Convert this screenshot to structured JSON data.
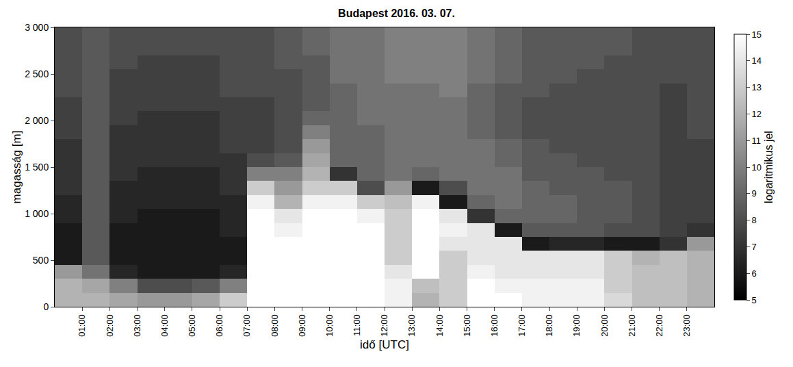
{
  "chart_data": {
    "type": "heatmap",
    "title": "Budapest 2016. 03. 07.",
    "x_label": "idő [UTC]",
    "y_label": "magasság [m]",
    "color": "gray",
    "xlim": [
      0,
      24
    ],
    "ylim": [
      0,
      3000
    ],
    "xticks": [
      {
        "value": 1,
        "label": "01:00"
      },
      {
        "value": 2,
        "label": "02:00"
      },
      {
        "value": 3,
        "label": "03:00"
      },
      {
        "value": 4,
        "label": "04:00"
      },
      {
        "value": 5,
        "label": "05:00"
      },
      {
        "value": 6,
        "label": "06:00"
      },
      {
        "value": 7,
        "label": "07:00"
      },
      {
        "value": 8,
        "label": "08:00"
      },
      {
        "value": 9,
        "label": "09:00"
      },
      {
        "value": 10,
        "label": "10:00"
      },
      {
        "value": 11,
        "label": "11:00"
      },
      {
        "value": 12,
        "label": "12:00"
      },
      {
        "value": 13,
        "label": "13:00"
      },
      {
        "value": 14,
        "label": "14:00"
      },
      {
        "value": 15,
        "label": "15:00"
      },
      {
        "value": 16,
        "label": "16:00"
      },
      {
        "value": 17,
        "label": "17:00"
      },
      {
        "value": 18,
        "label": "18:00"
      },
      {
        "value": 19,
        "label": "19:00"
      },
      {
        "value": 20,
        "label": "20:00"
      },
      {
        "value": 21,
        "label": "21:00"
      },
      {
        "value": 22,
        "label": "22:00"
      },
      {
        "value": 23,
        "label": "23:00"
      }
    ],
    "yticks": [
      0,
      500,
      {
        "value": 1000,
        "label": "1 000"
      },
      {
        "value": 1500,
        "label": "1 500"
      },
      {
        "value": 2000,
        "label": "2 000"
      },
      {
        "value": 2500,
        "label": "2 500"
      },
      {
        "value": 3000,
        "label": "3 000"
      }
    ],
    "colorbar_label": "logaritmikus jel",
    "colorbar_range": [
      5,
      15
    ],
    "colorbar_ticks": [
      5,
      6,
      7,
      8,
      9,
      10,
      11,
      12,
      13,
      14,
      15
    ],
    "x": [
      0.5,
      1.5,
      2.5,
      3.5,
      4.5,
      5.5,
      6.5,
      7.5,
      8.5,
      9.5,
      10.5,
      11.5,
      12.5,
      13.5,
      14.5,
      15.5,
      16.5,
      17.5,
      18.5,
      19.5,
      20.5,
      21.5,
      22.5,
      23.5
    ],
    "y": [
      75,
      225,
      375,
      525,
      675,
      825,
      975,
      1125,
      1275,
      1425,
      1575,
      1725,
      1875,
      2025,
      2175,
      2325,
      2475,
      2625,
      2775,
      2925
    ],
    "cells": [
      [
        12,
        12,
        11.5,
        11,
        11,
        11.5,
        13,
        15,
        15,
        15,
        15,
        15,
        14.5,
        12,
        13,
        15,
        15,
        14.5,
        14.5,
        14.5,
        13.5,
        12.5,
        12.5,
        12
      ],
      [
        12,
        11.5,
        10,
        8,
        8,
        8.5,
        10,
        15,
        15,
        15,
        15,
        15,
        14.5,
        12.5,
        13,
        15,
        14.5,
        14.5,
        14.5,
        14.5,
        13,
        12.5,
        12.5,
        12
      ],
      [
        11,
        9.5,
        6.5,
        6,
        6,
        6,
        6.5,
        15,
        15,
        15,
        15,
        15,
        14,
        15,
        13,
        14.5,
        14,
        14,
        14,
        14,
        13,
        12.5,
        12.5,
        12
      ],
      [
        6,
        8.5,
        6,
        6,
        6,
        6,
        6,
        15,
        15,
        15,
        15,
        15,
        13,
        15,
        13,
        14,
        14,
        14,
        14,
        14,
        13,
        12,
        12.5,
        12
      ],
      [
        6,
        8.5,
        6,
        6,
        6,
        6,
        6,
        15,
        15,
        15,
        15,
        15,
        13,
        15,
        14,
        14,
        14,
        6,
        6.5,
        6.5,
        6,
        6,
        7,
        11
      ],
      [
        6,
        8.5,
        6,
        6,
        6,
        6,
        6.5,
        15,
        14.5,
        15,
        15,
        15,
        13,
        15,
        14.5,
        14,
        6,
        8.5,
        8.5,
        8.5,
        8,
        8,
        7.5,
        7
      ],
      [
        6.5,
        8.5,
        6.5,
        6,
        6,
        6,
        6.5,
        15,
        14,
        15,
        15,
        14.5,
        13,
        15,
        14,
        7,
        9,
        9,
        9,
        8.5,
        8.5,
        8,
        7.5,
        7.5
      ],
      [
        6.5,
        8.5,
        6.5,
        6.5,
        6.5,
        6.5,
        6.5,
        14.5,
        12,
        14.5,
        14.5,
        13,
        12.5,
        14.5,
        6,
        9,
        9.5,
        9,
        9,
        8.5,
        8.5,
        8,
        7.5,
        7.5
      ],
      [
        7,
        8.5,
        6.5,
        6.5,
        6.5,
        6.5,
        7,
        13,
        11,
        13,
        13,
        8,
        11,
        6,
        8,
        9.5,
        9.5,
        9,
        8.5,
        8.5,
        8.5,
        8,
        7.5,
        7.5
      ],
      [
        7,
        8.5,
        7,
        6.5,
        6.5,
        6.5,
        7,
        10,
        10,
        12,
        7,
        9,
        9.5,
        9,
        9.5,
        9.5,
        9.5,
        8.5,
        8.5,
        8.5,
        8,
        8,
        7.5,
        7.5
      ],
      [
        7,
        8.5,
        7,
        7,
        7,
        7,
        7,
        8,
        8.5,
        11.5,
        9,
        9,
        9.5,
        9.5,
        9.5,
        9.5,
        9,
        8.5,
        8.5,
        8,
        8,
        8,
        7.5,
        7.5
      ],
      [
        7,
        8.5,
        7,
        7,
        7,
        7,
        7.5,
        7.5,
        8,
        11,
        9,
        9,
        9.5,
        9.5,
        9.5,
        9.5,
        9,
        8.5,
        8,
        8,
        8,
        8,
        7.5,
        7.5
      ],
      [
        7.5,
        8.5,
        7,
        7,
        7,
        7,
        7.5,
        7.5,
        8,
        10,
        9,
        9,
        9.5,
        9.5,
        9.5,
        9,
        8.5,
        8,
        8,
        8,
        8,
        8,
        7.5,
        8
      ],
      [
        7.5,
        8.5,
        7.5,
        7,
        7,
        7,
        7.5,
        7.5,
        8,
        9,
        9,
        9.5,
        9.5,
        9.5,
        9.5,
        9,
        8.5,
        8,
        8,
        8,
        8,
        8,
        7.5,
        8
      ],
      [
        7.5,
        8.5,
        7.5,
        7.5,
        7.5,
        7.5,
        7.5,
        7.5,
        8,
        8.5,
        9,
        9.5,
        9.5,
        9.5,
        9.5,
        9,
        8.5,
        8,
        8,
        8,
        8,
        8,
        7.5,
        8
      ],
      [
        8,
        8.5,
        7.5,
        7.5,
        7.5,
        7.5,
        8,
        8,
        8,
        8.5,
        9,
        9.5,
        9.5,
        9.5,
        10,
        9,
        8.5,
        8.5,
        8,
        8,
        8,
        8,
        7.5,
        8
      ],
      [
        8,
        8.5,
        7.5,
        7.5,
        7.5,
        7.5,
        8,
        8,
        8,
        8.5,
        9.5,
        9.5,
        10,
        10,
        10,
        9.5,
        9,
        8.5,
        8.5,
        8,
        8,
        8,
        8,
        8
      ],
      [
        8,
        8.5,
        8,
        7.5,
        7.5,
        7.5,
        8,
        8,
        8.5,
        8.5,
        9.5,
        9.5,
        10,
        10,
        10,
        9.5,
        9,
        8.5,
        8.5,
        8.5,
        8,
        8,
        8,
        8
      ],
      [
        8,
        8.5,
        8,
        8,
        8,
        8,
        8,
        8,
        8.5,
        9,
        9.5,
        9.5,
        10,
        10,
        10,
        9.5,
        9,
        8.5,
        8.5,
        8.5,
        8.5,
        8,
        8,
        8
      ],
      [
        8,
        8.5,
        8,
        8,
        8,
        8,
        8,
        8,
        8.5,
        9,
        9.5,
        9.5,
        10,
        10,
        10,
        9.5,
        9,
        8.5,
        8.5,
        8.5,
        8.5,
        8,
        8,
        8
      ]
    ]
  }
}
